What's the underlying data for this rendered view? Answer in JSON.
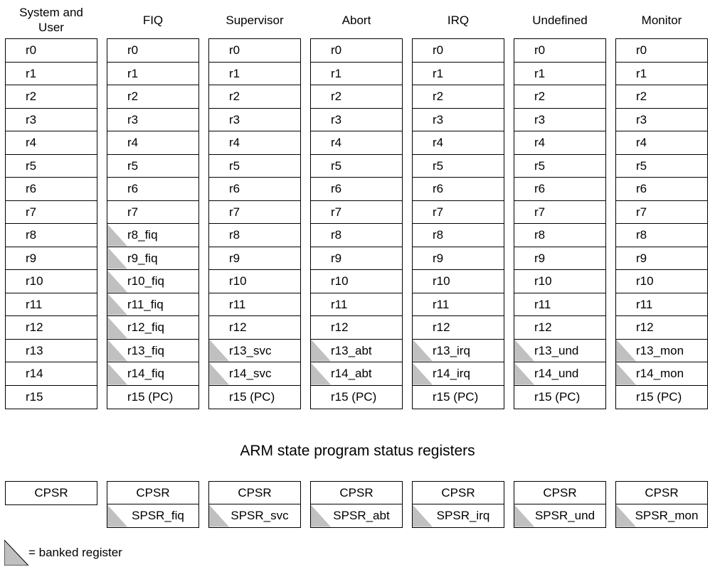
{
  "modes": [
    {
      "title": "System and User",
      "registers": [
        {
          "label": "r0",
          "banked": false
        },
        {
          "label": "r1",
          "banked": false
        },
        {
          "label": "r2",
          "banked": false
        },
        {
          "label": "r3",
          "banked": false
        },
        {
          "label": "r4",
          "banked": false
        },
        {
          "label": "r5",
          "banked": false
        },
        {
          "label": "r6",
          "banked": false
        },
        {
          "label": "r7",
          "banked": false
        },
        {
          "label": "r8",
          "banked": false
        },
        {
          "label": "r9",
          "banked": false
        },
        {
          "label": "r10",
          "banked": false
        },
        {
          "label": "r11",
          "banked": false
        },
        {
          "label": "r12",
          "banked": false
        },
        {
          "label": "r13",
          "banked": false
        },
        {
          "label": "r14",
          "banked": false
        },
        {
          "label": "r15",
          "banked": false
        }
      ],
      "psr": [
        {
          "label": "CPSR",
          "banked": false
        }
      ]
    },
    {
      "title": "FIQ",
      "registers": [
        {
          "label": "r0",
          "banked": false
        },
        {
          "label": "r1",
          "banked": false
        },
        {
          "label": "r2",
          "banked": false
        },
        {
          "label": "r3",
          "banked": false
        },
        {
          "label": "r4",
          "banked": false
        },
        {
          "label": "r5",
          "banked": false
        },
        {
          "label": "r6",
          "banked": false
        },
        {
          "label": "r7",
          "banked": false
        },
        {
          "label": "r8_fiq",
          "banked": true
        },
        {
          "label": "r9_fiq",
          "banked": true
        },
        {
          "label": "r10_fiq",
          "banked": true
        },
        {
          "label": "r11_fiq",
          "banked": true
        },
        {
          "label": "r12_fiq",
          "banked": true
        },
        {
          "label": "r13_fiq",
          "banked": true
        },
        {
          "label": "r14_fiq",
          "banked": true
        },
        {
          "label": "r15 (PC)",
          "banked": false
        }
      ],
      "psr": [
        {
          "label": "CPSR",
          "banked": false
        },
        {
          "label": "SPSR_fiq",
          "banked": true
        }
      ]
    },
    {
      "title": "Supervisor",
      "registers": [
        {
          "label": "r0",
          "banked": false
        },
        {
          "label": "r1",
          "banked": false
        },
        {
          "label": "r2",
          "banked": false
        },
        {
          "label": "r3",
          "banked": false
        },
        {
          "label": "r4",
          "banked": false
        },
        {
          "label": "r5",
          "banked": false
        },
        {
          "label": "r6",
          "banked": false
        },
        {
          "label": "r7",
          "banked": false
        },
        {
          "label": "r8",
          "banked": false
        },
        {
          "label": "r9",
          "banked": false
        },
        {
          "label": "r10",
          "banked": false
        },
        {
          "label": "r11",
          "banked": false
        },
        {
          "label": "r12",
          "banked": false
        },
        {
          "label": "r13_svc",
          "banked": true
        },
        {
          "label": "r14_svc",
          "banked": true
        },
        {
          "label": "r15 (PC)",
          "banked": false
        }
      ],
      "psr": [
        {
          "label": "CPSR",
          "banked": false
        },
        {
          "label": "SPSR_svc",
          "banked": true
        }
      ]
    },
    {
      "title": "Abort",
      "registers": [
        {
          "label": "r0",
          "banked": false
        },
        {
          "label": "r1",
          "banked": false
        },
        {
          "label": "r2",
          "banked": false
        },
        {
          "label": "r3",
          "banked": false
        },
        {
          "label": "r4",
          "banked": false
        },
        {
          "label": "r5",
          "banked": false
        },
        {
          "label": "r6",
          "banked": false
        },
        {
          "label": "r7",
          "banked": false
        },
        {
          "label": "r8",
          "banked": false
        },
        {
          "label": "r9",
          "banked": false
        },
        {
          "label": "r10",
          "banked": false
        },
        {
          "label": "r11",
          "banked": false
        },
        {
          "label": "r12",
          "banked": false
        },
        {
          "label": "r13_abt",
          "banked": true
        },
        {
          "label": "r14_abt",
          "banked": true
        },
        {
          "label": "r15 (PC)",
          "banked": false
        }
      ],
      "psr": [
        {
          "label": "CPSR",
          "banked": false
        },
        {
          "label": "SPSR_abt",
          "banked": true
        }
      ]
    },
    {
      "title": "IRQ",
      "registers": [
        {
          "label": "r0",
          "banked": false
        },
        {
          "label": "r1",
          "banked": false
        },
        {
          "label": "r2",
          "banked": false
        },
        {
          "label": "r3",
          "banked": false
        },
        {
          "label": "r4",
          "banked": false
        },
        {
          "label": "r5",
          "banked": false
        },
        {
          "label": "r6",
          "banked": false
        },
        {
          "label": "r7",
          "banked": false
        },
        {
          "label": "r8",
          "banked": false
        },
        {
          "label": "r9",
          "banked": false
        },
        {
          "label": "r10",
          "banked": false
        },
        {
          "label": "r11",
          "banked": false
        },
        {
          "label": "r12",
          "banked": false
        },
        {
          "label": "r13_irq",
          "banked": true
        },
        {
          "label": "r14_irq",
          "banked": true
        },
        {
          "label": "r15 (PC)",
          "banked": false
        }
      ],
      "psr": [
        {
          "label": "CPSR",
          "banked": false
        },
        {
          "label": "SPSR_irq",
          "banked": true
        }
      ]
    },
    {
      "title": "Undefined",
      "registers": [
        {
          "label": "r0",
          "banked": false
        },
        {
          "label": "r1",
          "banked": false
        },
        {
          "label": "r2",
          "banked": false
        },
        {
          "label": "r3",
          "banked": false
        },
        {
          "label": "r4",
          "banked": false
        },
        {
          "label": "r5",
          "banked": false
        },
        {
          "label": "r6",
          "banked": false
        },
        {
          "label": "r7",
          "banked": false
        },
        {
          "label": "r8",
          "banked": false
        },
        {
          "label": "r9",
          "banked": false
        },
        {
          "label": "r10",
          "banked": false
        },
        {
          "label": "r11",
          "banked": false
        },
        {
          "label": "r12",
          "banked": false
        },
        {
          "label": "r13_und",
          "banked": true
        },
        {
          "label": "r14_und",
          "banked": true
        },
        {
          "label": "r15 (PC)",
          "banked": false
        }
      ],
      "psr": [
        {
          "label": "CPSR",
          "banked": false
        },
        {
          "label": "SPSR_und",
          "banked": true
        }
      ]
    },
    {
      "title": "Monitor",
      "registers": [
        {
          "label": "r0",
          "banked": false
        },
        {
          "label": "r1",
          "banked": false
        },
        {
          "label": "r2",
          "banked": false
        },
        {
          "label": "r3",
          "banked": false
        },
        {
          "label": "r4",
          "banked": false
        },
        {
          "label": "r5",
          "banked": false
        },
        {
          "label": "r6",
          "banked": false
        },
        {
          "label": "r7",
          "banked": false
        },
        {
          "label": "r8",
          "banked": false
        },
        {
          "label": "r9",
          "banked": false
        },
        {
          "label": "r10",
          "banked": false
        },
        {
          "label": "r11",
          "banked": false
        },
        {
          "label": "r12",
          "banked": false
        },
        {
          "label": "r13_mon",
          "banked": true
        },
        {
          "label": "r14_mon",
          "banked": true
        },
        {
          "label": "r15 (PC)",
          "banked": false
        }
      ],
      "psr": [
        {
          "label": "CPSR",
          "banked": false
        },
        {
          "label": "SPSR_mon",
          "banked": true
        }
      ]
    }
  ],
  "psr_section_title": "ARM state program status registers",
  "legend": {
    "label": "= banked register"
  },
  "colors": {
    "banked_fill": "#c0c0c0",
    "border": "#000000"
  }
}
